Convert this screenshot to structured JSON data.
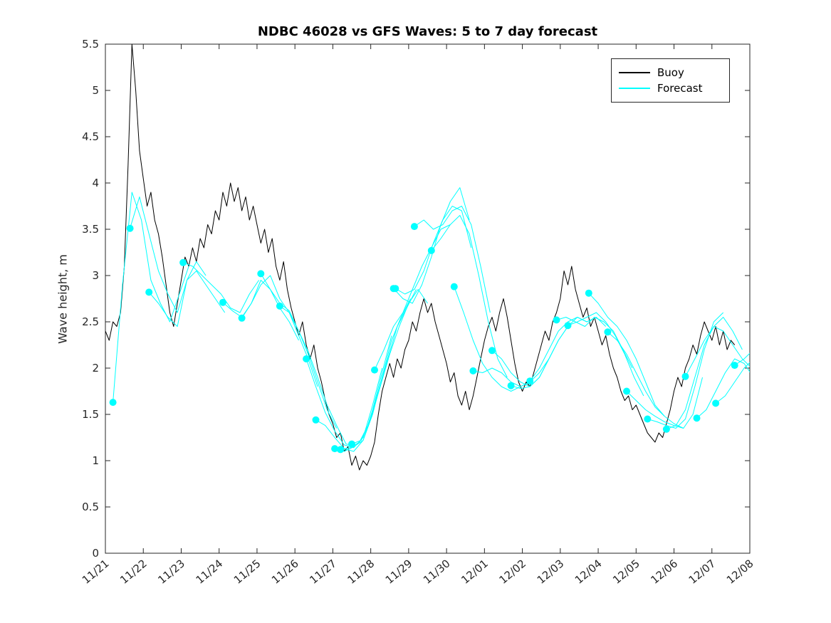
{
  "figure": {
    "background": "#ffffff"
  },
  "legend": {
    "items": [
      {
        "label": "Buoy",
        "color": "#000000"
      },
      {
        "label": "Forecast",
        "color": "#00ffff"
      }
    ]
  },
  "chart_data": {
    "type": "line",
    "title": "NDBC 46028 vs GFS Waves: 5 to 7 day forecast",
    "xlabel": "",
    "ylabel": "Wave height, m",
    "x_units": "days_after_11/21",
    "xlim": [
      0,
      17
    ],
    "ylim": [
      0,
      5.5
    ],
    "grid": false,
    "legend_position": "top-right",
    "xticks": [
      0,
      1,
      2,
      3,
      4,
      5,
      6,
      7,
      8,
      9,
      10,
      11,
      12,
      13,
      14,
      15,
      16,
      17
    ],
    "xtick_labels": [
      "11/21",
      "11/22",
      "11/23",
      "11/24",
      "11/25",
      "11/26",
      "11/27",
      "11/28",
      "11/29",
      "11/30",
      "12/01",
      "12/02",
      "12/03",
      "12/04",
      "12/05",
      "12/06",
      "12/07",
      "12/08"
    ],
    "yticks": [
      0,
      0.5,
      1,
      1.5,
      2,
      2.5,
      3,
      3.5,
      4,
      4.5,
      5,
      5.5
    ],
    "ytick_labels": [
      "0",
      "0.5",
      "1",
      "1.5",
      "2",
      "2.5",
      "3",
      "3.5",
      "4",
      "4.5",
      "5",
      "5.5"
    ],
    "xtick_angle_deg": -40,
    "buoy": {
      "name": "Buoy",
      "color": "#000000",
      "line_width": 1,
      "x0": 0,
      "dx": 0.1,
      "y": [
        2.4,
        2.3,
        2.5,
        2.45,
        2.6,
        3.1,
        4.2,
        5.5,
        5.0,
        4.35,
        4.05,
        3.75,
        3.9,
        3.6,
        3.45,
        3.2,
        2.9,
        2.6,
        2.45,
        2.7,
        2.95,
        3.2,
        3.1,
        3.3,
        3.15,
        3.4,
        3.3,
        3.55,
        3.45,
        3.7,
        3.6,
        3.9,
        3.75,
        4.0,
        3.8,
        3.95,
        3.7,
        3.85,
        3.6,
        3.75,
        3.55,
        3.35,
        3.5,
        3.25,
        3.4,
        3.1,
        2.95,
        3.15,
        2.85,
        2.65,
        2.5,
        2.35,
        2.5,
        2.25,
        2.1,
        2.25,
        2.0,
        1.85,
        1.65,
        1.5,
        1.4,
        1.25,
        1.3,
        1.1,
        1.15,
        0.95,
        1.05,
        0.9,
        1.0,
        0.95,
        1.05,
        1.2,
        1.5,
        1.75,
        1.9,
        2.05,
        1.9,
        2.1,
        2.0,
        2.2,
        2.3,
        2.5,
        2.4,
        2.6,
        2.75,
        2.6,
        2.7,
        2.5,
        2.35,
        2.2,
        2.05,
        1.85,
        1.95,
        1.7,
        1.6,
        1.75,
        1.55,
        1.7,
        1.9,
        2.1,
        2.3,
        2.45,
        2.55,
        2.4,
        2.6,
        2.75,
        2.55,
        2.3,
        2.05,
        1.85,
        1.75,
        1.85,
        1.8,
        1.95,
        2.1,
        2.25,
        2.4,
        2.3,
        2.5,
        2.6,
        2.75,
        3.05,
        2.9,
        3.1,
        2.85,
        2.7,
        2.55,
        2.65,
        2.45,
        2.55,
        2.4,
        2.25,
        2.35,
        2.15,
        2.0,
        1.9,
        1.75,
        1.65,
        1.7,
        1.55,
        1.6,
        1.5,
        1.4,
        1.3,
        1.25,
        1.2,
        1.3,
        1.25,
        1.4,
        1.55,
        1.75,
        1.9,
        1.8,
        2.0,
        2.1,
        2.25,
        2.15,
        2.35,
        2.5,
        2.4,
        2.3,
        2.45,
        2.25,
        2.4,
        2.2,
        2.3,
        2.25
      ]
    },
    "forecast": {
      "name": "Forecast",
      "color": "#00ffff",
      "line_width": 1,
      "marker_at_segment_start": true,
      "marker_radius": 5,
      "segments": [
        {
          "x0": 0.2,
          "dx": 0.25,
          "y": [
            1.63,
            2.9,
            3.9,
            3.6,
            2.95,
            2.7,
            2.5,
            2.8,
            3.1
          ]
        },
        {
          "x0": 0.65,
          "dx": 0.25,
          "y": [
            3.51,
            3.85,
            3.45,
            3.05,
            2.8,
            2.6,
            2.95,
            3.15,
            3.0
          ]
        },
        {
          "x0": 1.15,
          "dx": 0.25,
          "y": [
            2.82,
            2.7,
            2.55,
            2.45,
            2.95,
            3.05,
            2.9,
            2.75,
            2.6
          ]
        },
        {
          "x0": 2.05,
          "dx": 0.25,
          "y": [
            3.14,
            3.1,
            3.0,
            2.9,
            2.8,
            2.65,
            2.6,
            2.8,
            2.95
          ]
        },
        {
          "x0": 3.1,
          "dx": 0.25,
          "y": [
            2.71,
            2.62,
            2.55,
            2.7,
            2.95,
            2.85,
            2.65,
            2.5,
            2.3
          ]
        },
        {
          "x0": 3.6,
          "dx": 0.25,
          "y": [
            2.54,
            2.7,
            2.9,
            3.0,
            2.75,
            2.6,
            2.35,
            2.1,
            1.8
          ]
        },
        {
          "x0": 4.1,
          "dx": 0.25,
          "y": [
            3.02,
            2.85,
            2.7,
            2.62,
            2.4,
            2.15,
            1.85,
            1.55,
            1.35
          ]
        },
        {
          "x0": 4.6,
          "dx": 0.25,
          "y": [
            2.67,
            2.6,
            2.4,
            2.18,
            1.9,
            1.6,
            1.38,
            1.18,
            1.16
          ]
        },
        {
          "x0": 5.3,
          "dx": 0.25,
          "y": [
            2.1,
            1.8,
            1.52,
            1.32,
            1.17,
            1.14,
            1.25,
            1.6,
            2.0
          ]
        },
        {
          "x0": 5.55,
          "dx": 0.25,
          "y": [
            1.44,
            1.38,
            1.25,
            1.13,
            1.1,
            1.22,
            1.55,
            1.95,
            2.35
          ]
        },
        {
          "x0": 6.05,
          "dx": 0.25,
          "y": [
            1.13,
            1.1,
            1.15,
            1.22,
            1.5,
            1.9,
            2.3,
            2.55,
            2.75
          ]
        },
        {
          "x0": 6.2,
          "dx": 0.25,
          "y": [
            1.12,
            1.14,
            1.2,
            1.4,
            1.75,
            2.1,
            2.45,
            2.65,
            2.85
          ]
        },
        {
          "x0": 6.5,
          "dx": 0.25,
          "y": [
            1.18,
            1.22,
            1.45,
            1.8,
            2.15,
            2.45,
            2.7,
            2.85,
            2.7
          ]
        },
        {
          "x0": 7.1,
          "dx": 0.25,
          "y": [
            1.98,
            2.2,
            2.45,
            2.6,
            2.85,
            3.1,
            3.3,
            3.5,
            3.55
          ]
        },
        {
          "x0": 7.6,
          "dx": 0.25,
          "y": [
            2.86,
            2.75,
            2.7,
            2.9,
            3.2,
            3.55,
            3.8,
            3.95,
            3.6
          ]
        },
        {
          "x0": 7.65,
          "dx": 0.25,
          "y": [
            2.86,
            2.8,
            2.85,
            3.05,
            3.35,
            3.6,
            3.75,
            3.7,
            3.3
          ]
        },
        {
          "x0": 8.15,
          "dx": 0.25,
          "y": [
            3.53,
            3.6,
            3.5,
            3.55,
            3.7,
            3.75,
            3.55,
            3.1,
            2.6
          ]
        },
        {
          "x0": 8.6,
          "dx": 0.25,
          "y": [
            3.27,
            3.4,
            3.55,
            3.65,
            3.45,
            3.0,
            2.5,
            2.1,
            1.9
          ]
        },
        {
          "x0": 9.2,
          "dx": 0.25,
          "y": [
            2.88,
            2.6,
            2.3,
            2.05,
            1.9,
            1.8,
            1.75,
            1.8,
            1.85
          ]
        },
        {
          "x0": 9.7,
          "dx": 0.25,
          "y": [
            1.97,
            1.95,
            2.0,
            1.95,
            1.85,
            1.8,
            1.85,
            1.95,
            2.1
          ]
        },
        {
          "x0": 10.2,
          "dx": 0.25,
          "y": [
            2.19,
            2.1,
            1.95,
            1.85,
            1.8,
            1.9,
            2.1,
            2.3,
            2.45
          ]
        },
        {
          "x0": 10.7,
          "dx": 0.25,
          "y": [
            1.81,
            1.78,
            1.8,
            1.9,
            2.1,
            2.3,
            2.45,
            2.55,
            2.5
          ]
        },
        {
          "x0": 11.2,
          "dx": 0.25,
          "y": [
            1.86,
            2.0,
            2.2,
            2.4,
            2.5,
            2.55,
            2.5,
            2.55,
            2.45
          ]
        },
        {
          "x0": 11.9,
          "dx": 0.25,
          "y": [
            2.52,
            2.55,
            2.5,
            2.45,
            2.55,
            2.5,
            2.4,
            2.2,
            2.0
          ]
        },
        {
          "x0": 12.2,
          "dx": 0.25,
          "y": [
            2.46,
            2.5,
            2.55,
            2.6,
            2.5,
            2.35,
            2.15,
            1.9,
            1.7
          ]
        },
        {
          "x0": 12.75,
          "dx": 0.25,
          "y": [
            2.81,
            2.7,
            2.55,
            2.45,
            2.3,
            2.1,
            1.85,
            1.6,
            1.48
          ]
        },
        {
          "x0": 13.25,
          "dx": 0.25,
          "y": [
            2.39,
            2.3,
            2.15,
            1.95,
            1.75,
            1.58,
            1.48,
            1.4,
            1.35
          ]
        },
        {
          "x0": 13.75,
          "dx": 0.25,
          "y": [
            1.75,
            1.65,
            1.55,
            1.48,
            1.42,
            1.38,
            1.35,
            1.5,
            1.9
          ]
        },
        {
          "x0": 14.3,
          "dx": 0.25,
          "y": [
            1.45,
            1.42,
            1.38,
            1.35,
            1.45,
            1.8,
            2.2,
            2.5,
            2.6
          ]
        },
        {
          "x0": 14.8,
          "dx": 0.25,
          "y": [
            1.34,
            1.38,
            1.55,
            1.9,
            2.25,
            2.45,
            2.55,
            2.4,
            2.2
          ]
        },
        {
          "x0": 15.3,
          "dx": 0.25,
          "y": [
            1.91,
            2.1,
            2.3,
            2.45,
            2.4,
            2.25,
            2.1,
            2.0,
            2.2
          ]
        },
        {
          "x0": 15.6,
          "dx": 0.25,
          "y": [
            1.46,
            1.55,
            1.75,
            1.95,
            2.1,
            2.05,
            1.9,
            1.75,
            1.65
          ]
        },
        {
          "x0": 16.1,
          "dx": 0.25,
          "y": [
            1.62,
            1.7,
            1.85,
            2.0,
            2.1,
            2.2,
            2.25,
            2.3,
            2.35
          ]
        },
        {
          "x0": 16.6,
          "dx": 0.25,
          "y": [
            2.03,
            2.1,
            2.2,
            2.15,
            2.25
          ]
        }
      ]
    }
  }
}
